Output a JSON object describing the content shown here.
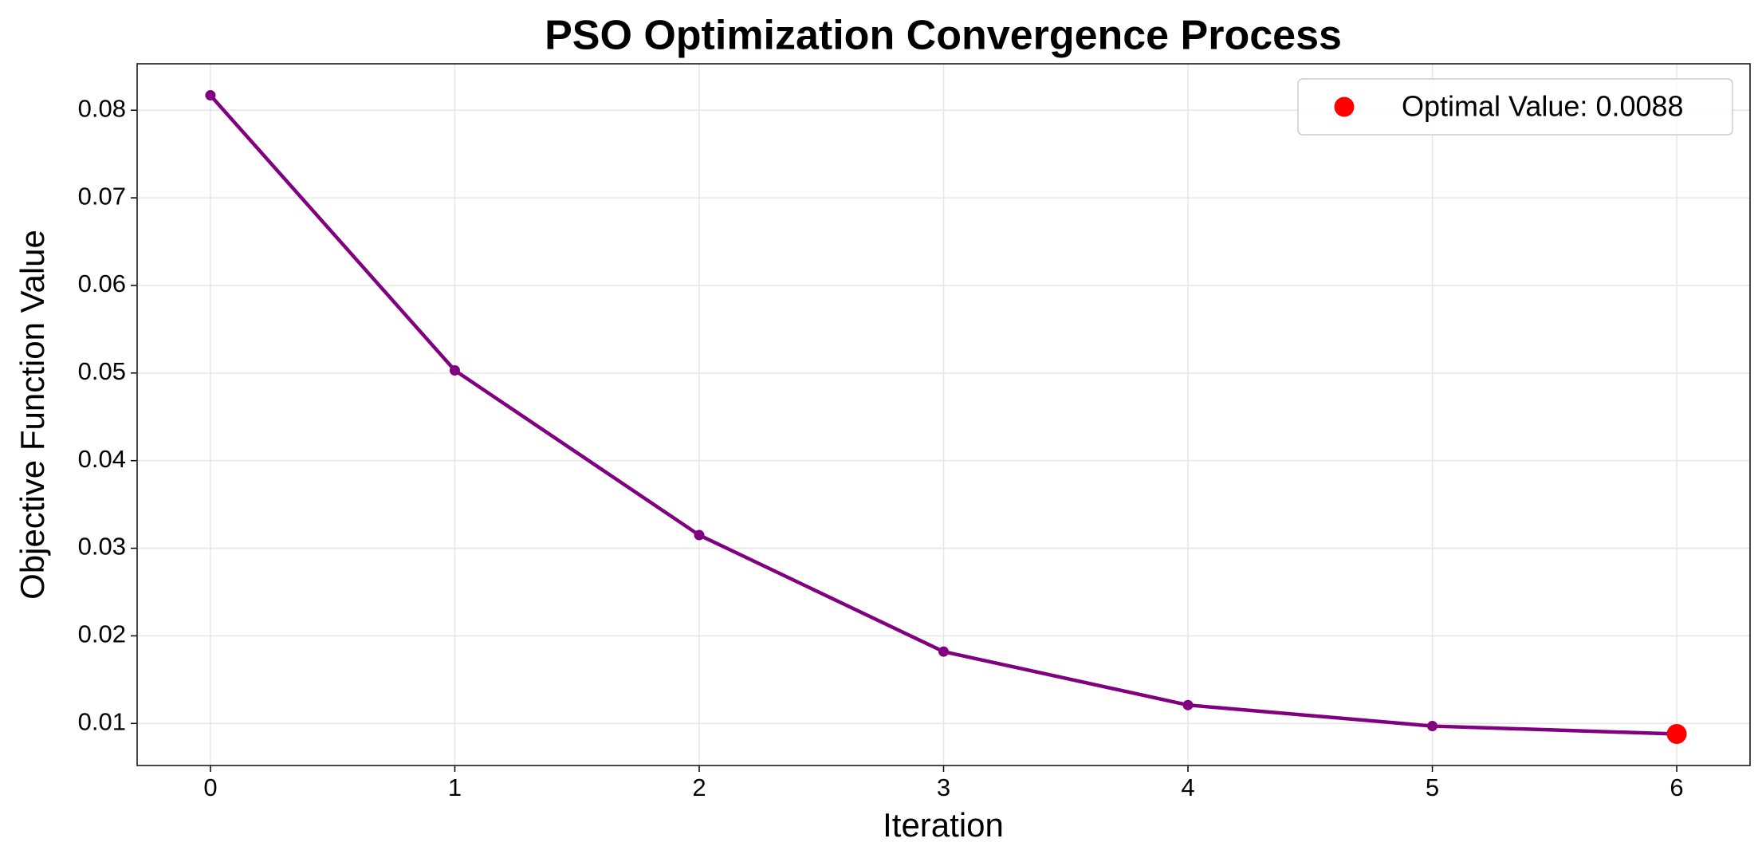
{
  "chart_data": {
    "type": "line",
    "title": "PSO Optimization Convergence Process",
    "x_label": "Iteration",
    "y_label": "Objective Function Value",
    "x": [
      0,
      1,
      2,
      3,
      4,
      5,
      6
    ],
    "series": [
      {
        "color": "#800080",
        "values": [
          0.0817,
          0.0503,
          0.0315,
          0.0182,
          0.0121,
          0.0097,
          0.0088
        ]
      }
    ],
    "highlight": {
      "name": "Optimal Value: 0.0088",
      "x": 6,
      "value": 0.0088,
      "color": "#ff0000"
    },
    "xlim": [
      -0.3,
      6.3
    ],
    "xticks": [
      0,
      1,
      2,
      3,
      4,
      5,
      6
    ],
    "ylim": [
      0.0052,
      0.0853
    ],
    "yticks": [
      0.01,
      0.02,
      0.03,
      0.04,
      0.05,
      0.06,
      0.07,
      0.08
    ],
    "grid": true,
    "legend_position": "upper-right"
  }
}
